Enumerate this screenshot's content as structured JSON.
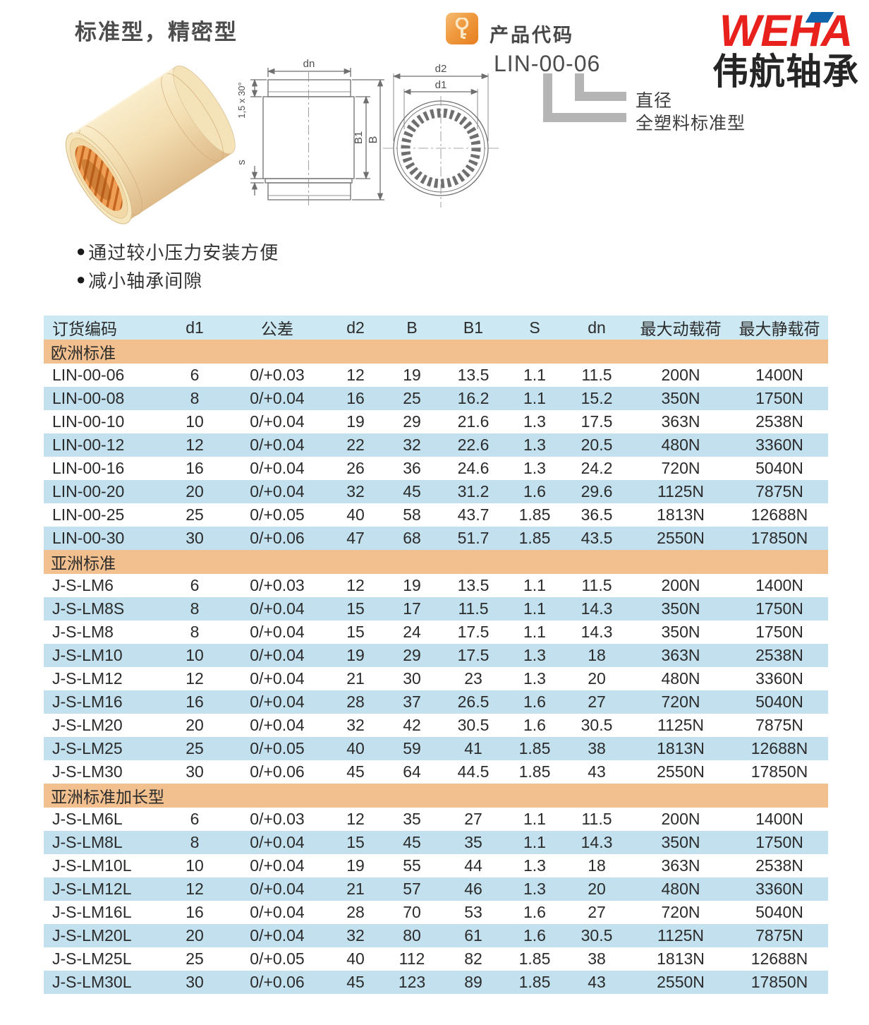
{
  "header": {
    "title": "标准型，精密型",
    "product_code": {
      "label": "产品代码",
      "code": "LIN-00-06",
      "branch_labels": [
        "直径",
        "全塑料标准型"
      ]
    },
    "logo": {
      "brand": "WEHA",
      "brand_cn": "伟航轴承",
      "brand_color": "#e8211d",
      "accent_color": "#1365ab"
    },
    "drawing_labels": {
      "dn": "dn",
      "chamfer": "1,5 x 30°",
      "s": "s",
      "b1": "B1",
      "b": "B",
      "d2": "d2",
      "d1": "d1"
    }
  },
  "features": [
    "通过较小压力安装方便",
    "减小轴承间隙"
  ],
  "table": {
    "columns": [
      "订货编码",
      "d1",
      "公差",
      "d2",
      "B",
      "B1",
      "S",
      "dn",
      "最大动载荷",
      "最大静载荷"
    ],
    "colors": {
      "header_bg": "#cce8f2",
      "section_bg": "#f2c08f",
      "alt_row_bg": "#c2e0ed"
    },
    "sections": [
      {
        "name": "欧洲标准",
        "rows": [
          [
            "LIN-00-06",
            "6",
            "0/+0.03",
            "12",
            "19",
            "13.5",
            "1.1",
            "11.5",
            "200N",
            "1400N"
          ],
          [
            "LIN-00-08",
            "8",
            "0/+0.04",
            "16",
            "25",
            "16.2",
            "1.1",
            "15.2",
            "350N",
            "1750N"
          ],
          [
            "LIN-00-10",
            "10",
            "0/+0.04",
            "19",
            "29",
            "21.6",
            "1.3",
            "17.5",
            "363N",
            "2538N"
          ],
          [
            "LIN-00-12",
            "12",
            "0/+0.04",
            "22",
            "32",
            "22.6",
            "1.3",
            "20.5",
            "480N",
            "3360N"
          ],
          [
            "LIN-00-16",
            "16",
            "0/+0.04",
            "26",
            "36",
            "24.6",
            "1.3",
            "24.2",
            "720N",
            "5040N"
          ],
          [
            "LIN-00-20",
            "20",
            "0/+0.04",
            "32",
            "45",
            "31.2",
            "1.6",
            "29.6",
            "1125N",
            "7875N"
          ],
          [
            "LIN-00-25",
            "25",
            "0/+0.05",
            "40",
            "58",
            "43.7",
            "1.85",
            "36.5",
            "1813N",
            "12688N"
          ],
          [
            "LIN-00-30",
            "30",
            "0/+0.06",
            "47",
            "68",
            "51.7",
            "1.85",
            "43.5",
            "2550N",
            "17850N"
          ]
        ]
      },
      {
        "name": "亚洲标准",
        "rows": [
          [
            "J-S-LM6",
            "6",
            "0/+0.03",
            "12",
            "19",
            "13.5",
            "1.1",
            "11.5",
            "200N",
            "1400N"
          ],
          [
            "J-S-LM8S",
            "8",
            "0/+0.04",
            "15",
            "17",
            "11.5",
            "1.1",
            "14.3",
            "350N",
            "1750N"
          ],
          [
            "J-S-LM8",
            "8",
            "0/+0.04",
            "15",
            "24",
            "17.5",
            "1.1",
            "14.3",
            "350N",
            "1750N"
          ],
          [
            "J-S-LM10",
            "10",
            "0/+0.04",
            "19",
            "29",
            "17.5",
            "1.3",
            "18",
            "363N",
            "2538N"
          ],
          [
            "J-S-LM12",
            "12",
            "0/+0.04",
            "21",
            "30",
            "23",
            "1.3",
            "20",
            "480N",
            "3360N"
          ],
          [
            "J-S-LM16",
            "16",
            "0/+0.04",
            "28",
            "37",
            "26.5",
            "1.6",
            "27",
            "720N",
            "5040N"
          ],
          [
            "J-S-LM20",
            "20",
            "0/+0.04",
            "32",
            "42",
            "30.5",
            "1.6",
            "30.5",
            "1125N",
            "7875N"
          ],
          [
            "J-S-LM25",
            "25",
            "0/+0.05",
            "40",
            "59",
            "41",
            "1.85",
            "38",
            "1813N",
            "12688N"
          ],
          [
            "J-S-LM30",
            "30",
            "0/+0.06",
            "45",
            "64",
            "44.5",
            "1.85",
            "43",
            "2550N",
            "17850N"
          ]
        ]
      },
      {
        "name": "亚洲标准加长型",
        "rows": [
          [
            "J-S-LM6L",
            "6",
            "0/+0.03",
            "12",
            "35",
            "27",
            "1.1",
            "11.5",
            "200N",
            "1400N"
          ],
          [
            "J-S-LM8L",
            "8",
            "0/+0.04",
            "15",
            "45",
            "35",
            "1.1",
            "14.3",
            "350N",
            "1750N"
          ],
          [
            "J-S-LM10L",
            "10",
            "0/+0.04",
            "19",
            "55",
            "44",
            "1.3",
            "18",
            "363N",
            "2538N"
          ],
          [
            "J-S-LM12L",
            "12",
            "0/+0.04",
            "21",
            "57",
            "46",
            "1.3",
            "20",
            "480N",
            "3360N"
          ],
          [
            "J-S-LM16L",
            "16",
            "0/+0.04",
            "28",
            "70",
            "53",
            "1.6",
            "27",
            "720N",
            "5040N"
          ],
          [
            "J-S-LM20L",
            "20",
            "0/+0.04",
            "32",
            "80",
            "61",
            "1.6",
            "30.5",
            "1125N",
            "7875N"
          ],
          [
            "J-S-LM25L",
            "25",
            "0/+0.05",
            "40",
            "112",
            "82",
            "1.85",
            "38",
            "1813N",
            "12688N"
          ],
          [
            "J-S-LM30L",
            "30",
            "0/+0.06",
            "45",
            "123",
            "89",
            "1.85",
            "43",
            "2550N",
            "17850N"
          ]
        ]
      }
    ]
  }
}
